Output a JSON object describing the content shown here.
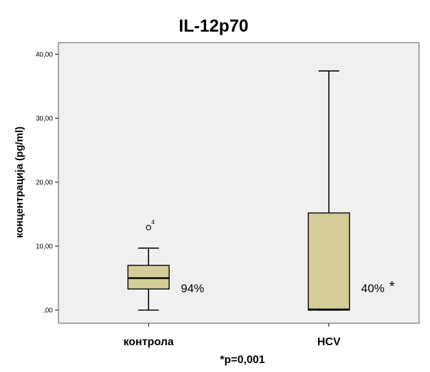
{
  "chart_data": {
    "type": "boxplot",
    "title": "IL-12p70",
    "ylabel": "концентрација (pg/ml)",
    "xlabel": "*p=0,001",
    "ylim": [
      0,
      40
    ],
    "yticks": [
      0,
      10,
      20,
      30,
      40
    ],
    "ytick_labels": [
      ",00",
      "10,00",
      "20,00",
      "30,00",
      "40,00"
    ],
    "grid": false,
    "colors": {
      "box_fill": "#d4cc99",
      "plot_bg": "#f0f0f0",
      "frame": "#555555",
      "line": "#000000"
    },
    "series": [
      {
        "category": "контрола",
        "whisker_low": 0,
        "q1": 3.3,
        "median": 5.0,
        "q3": 7.0,
        "whisker_high": 9.7,
        "outliers": [
          {
            "value": 12.9,
            "label": "4"
          }
        ],
        "annotation": "94%",
        "star": ""
      },
      {
        "category": "HCV",
        "whisker_low": 0,
        "q1": 0,
        "median": 0.1,
        "q3": 15.2,
        "whisker_high": 37.4,
        "outliers": [],
        "annotation": "40%",
        "star": "*"
      }
    ]
  }
}
